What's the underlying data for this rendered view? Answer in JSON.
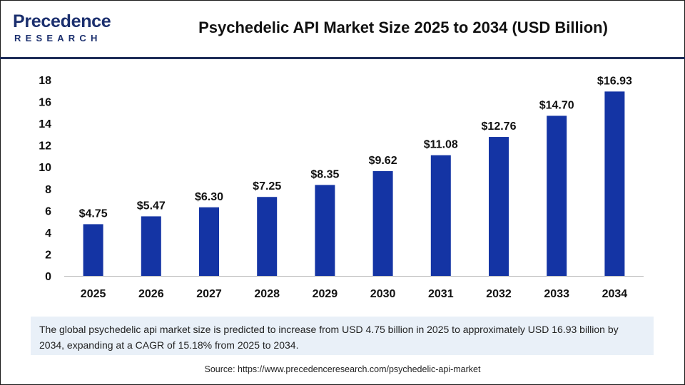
{
  "brand": {
    "name": "Precedence",
    "sub": "RESEARCH",
    "color": "#1b2f6e"
  },
  "header": {
    "title": "Psychedelic API Market Size 2025 to 2034 (USD Billion)"
  },
  "chart_data": {
    "type": "bar",
    "categories": [
      "2025",
      "2026",
      "2027",
      "2028",
      "2029",
      "2030",
      "2031",
      "2032",
      "2033",
      "2034"
    ],
    "values": [
      4.75,
      5.47,
      6.3,
      7.25,
      8.35,
      9.62,
      11.08,
      12.76,
      14.7,
      16.93
    ],
    "data_labels": [
      "$4.75",
      "$5.47",
      "$6.30",
      "$7.25",
      "$8.35",
      "$9.62",
      "$11.08",
      "$12.76",
      "$14.70",
      "$16.93"
    ],
    "title": "Psychedelic API Market Size 2025 to 2034 (USD Billion)",
    "xlabel": "",
    "ylabel": "",
    "ylim": [
      0,
      18
    ],
    "yticks": [
      0,
      2,
      4,
      6,
      8,
      10,
      12,
      14,
      16,
      18
    ],
    "grid": false,
    "bar_color": "#1434a4"
  },
  "note": "The global psychedelic api market size is predicted to increase from USD 4.75 billion in 2025 to approximately USD 16.93 billion by 2034, expanding at a CAGR of 15.18% from 2025 to 2034.",
  "source": "Source: https://www.precedenceresearch.com/psychedelic-api-market"
}
